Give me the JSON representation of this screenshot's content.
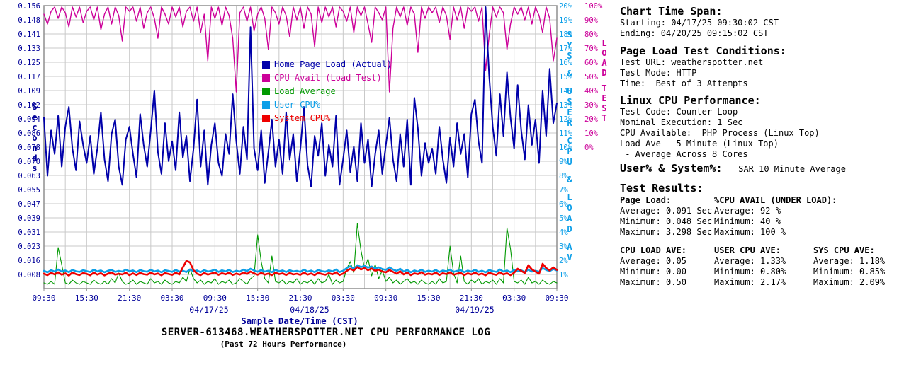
{
  "chart_data": {
    "type": "line",
    "title": "SERVER-613468.WEATHERSPOTTER.NET CPU PERFORMANCE LOG",
    "subtitle": "(Past 72 Hours Performance)",
    "xlabel": "Sample Date/Time (CST)",
    "x_tick_labels": [
      "09:30",
      "15:30",
      "21:30",
      "03:30",
      "09:30",
      "15:30",
      "21:30",
      "03:30",
      "09:30",
      "15:30",
      "21:30",
      "03:30",
      "09:30"
    ],
    "x_dates": [
      "04/17/25",
      "04/18/25",
      "04/19/25"
    ],
    "x_range_hours": [
      0,
      72
    ],
    "grid": true,
    "axes": {
      "left": {
        "title": "Seconds",
        "ticks": [
          "0.156",
          "0.148",
          "0.141",
          "0.133",
          "0.125",
          "0.117",
          "0.109",
          "0.102",
          "0.094",
          "0.086",
          "0.078",
          "0.070",
          "0.063",
          "0.055",
          "0.047",
          "0.039",
          "0.031",
          "0.023",
          "0.016",
          "0.008"
        ],
        "range": [
          0.156,
          0.0
        ]
      },
      "right_inner": {
        "title": "SYS & USER CPU & LOAD AV",
        "ticks": [
          "20%",
          "19%",
          "18%",
          "17%",
          "16%",
          "15%",
          "14%",
          "13%",
          "12%",
          "11%",
          "10%",
          "9%",
          "8%",
          "7%",
          "6%",
          "5%",
          "4%",
          "3%",
          "2%",
          "1%"
        ],
        "range": [
          20,
          0
        ]
      },
      "right_outer": {
        "title": "LOAD TEST",
        "ticks": [
          "100%",
          "90%",
          "80%",
          "70%",
          "60%",
          "50%",
          "40%",
          "30%",
          "20%",
          "10%",
          "0%"
        ],
        "range": [
          100,
          0
        ]
      }
    },
    "series": [
      {
        "name": "Home Page Load (Actual)",
        "color": "#0000AA",
        "axis": "seconds",
        "width": 2,
        "values": [
          0.095,
          0.063,
          0.088,
          0.075,
          0.096,
          0.068,
          0.09,
          0.101,
          0.078,
          0.066,
          0.093,
          0.08,
          0.07,
          0.085,
          0.064,
          0.078,
          0.098,
          0.072,
          0.06,
          0.086,
          0.094,
          0.068,
          0.058,
          0.083,
          0.09,
          0.075,
          0.062,
          0.097,
          0.08,
          0.068,
          0.088,
          0.11,
          0.076,
          0.064,
          0.092,
          0.071,
          0.082,
          0.066,
          0.098,
          0.073,
          0.085,
          0.06,
          0.078,
          0.105,
          0.068,
          0.088,
          0.058,
          0.08,
          0.092,
          0.07,
          0.063,
          0.086,
          0.075,
          0.108,
          0.082,
          0.064,
          0.09,
          0.072,
          0.145,
          0.078,
          0.066,
          0.088,
          0.059,
          0.076,
          0.094,
          0.068,
          0.083,
          0.064,
          0.098,
          0.072,
          0.086,
          0.06,
          0.078,
          0.101,
          0.069,
          0.057,
          0.085,
          0.074,
          0.092,
          0.063,
          0.08,
          0.068,
          0.096,
          0.058,
          0.072,
          0.088,
          0.065,
          0.079,
          0.06,
          0.092,
          0.07,
          0.083,
          0.057,
          0.075,
          0.088,
          0.064,
          0.08,
          0.095,
          0.072,
          0.06,
          0.086,
          0.068,
          0.094,
          0.058,
          0.106,
          0.089,
          0.063,
          0.081,
          0.07,
          0.078,
          0.064,
          0.09,
          0.072,
          0.059,
          0.084,
          0.068,
          0.092,
          0.075,
          0.086,
          0.062,
          0.097,
          0.105,
          0.082,
          0.07,
          0.156,
          0.118,
          0.09,
          0.074,
          0.108,
          0.085,
          0.12,
          0.095,
          0.078,
          0.113,
          0.088,
          0.072,
          0.102,
          0.08,
          0.094,
          0.07,
          0.11,
          0.085,
          0.122,
          0.092,
          0.103
        ]
      },
      {
        "name": "CPU Avail (Load Test)",
        "color": "#CC0099",
        "axis": "load",
        "width": 1.4,
        "values": [
          95,
          88,
          97,
          100,
          92,
          100,
          96,
          86,
          100,
          93,
          100,
          89,
          97,
          100,
          91,
          100,
          84,
          95,
          100,
          88,
          100,
          94,
          76,
          100,
          97,
          100,
          90,
          100,
          85,
          96,
          100,
          92,
          78,
          100,
          95,
          88,
          100,
          93,
          100,
          86,
          97,
          100,
          90,
          100,
          82,
          95,
          62,
          100,
          92,
          100,
          87,
          100,
          94,
          78,
          40,
          96,
          100,
          90,
          100,
          83,
          95,
          100,
          92,
          70,
          100,
          96,
          88,
          100,
          94,
          79,
          100,
          91,
          100,
          85,
          100,
          95,
          72,
          100,
          89,
          100,
          93,
          100,
          86,
          100,
          97,
          90,
          100,
          82,
          100,
          94,
          100,
          88,
          75,
          100,
          96,
          91,
          100,
          40,
          85,
          100,
          93,
          100,
          87,
          100,
          95,
          68,
          100,
          92,
          100,
          96,
          100,
          89,
          100,
          94,
          77,
          100,
          91,
          100,
          85,
          100,
          97,
          100,
          90,
          100,
          55,
          80,
          100,
          93,
          100,
          96,
          70,
          88,
          100,
          95,
          100,
          91,
          100,
          88,
          100,
          94,
          82,
          100,
          92,
          62,
          78
        ]
      },
      {
        "name": "Load Average",
        "color": "#009900",
        "axis": "pct",
        "width": 1.1,
        "values": [
          0.5,
          0.4,
          0.6,
          0.4,
          3.0,
          1.8,
          0.5,
          0.4,
          0.7,
          0.5,
          0.4,
          0.6,
          0.5,
          0.4,
          0.7,
          0.5,
          0.4,
          0.6,
          0.4,
          0.8,
          0.5,
          1.2,
          0.6,
          0.4,
          0.5,
          0.7,
          0.4,
          0.6,
          0.5,
          0.4,
          0.8,
          0.5,
          0.6,
          0.4,
          0.7,
          0.5,
          0.4,
          0.6,
          0.5,
          0.9,
          0.6,
          1.5,
          0.8,
          0.5,
          0.7,
          0.4,
          0.6,
          0.5,
          0.8,
          0.4,
          0.6,
          0.5,
          0.7,
          0.4,
          0.5,
          0.8,
          0.6,
          0.4,
          0.8,
          1.0,
          3.9,
          2.0,
          0.8,
          0.5,
          2.4,
          0.6,
          0.5,
          0.7,
          0.4,
          0.6,
          0.5,
          0.8,
          0.4,
          0.6,
          0.5,
          0.7,
          0.4,
          0.8,
          0.5,
          0.6,
          1.1,
          0.4,
          0.7,
          0.5,
          0.6,
          1.5,
          2.0,
          1.2,
          4.7,
          2.8,
          1.5,
          2.2,
          1.0,
          1.8,
          0.8,
          1.4,
          0.6,
          0.9,
          0.5,
          0.7,
          0.4,
          0.6,
          0.8,
          0.5,
          0.6,
          0.4,
          0.7,
          0.5,
          0.4,
          0.6,
          0.4,
          0.8,
          0.5,
          0.6,
          3.1,
          1.2,
          0.5,
          2.4,
          0.6,
          0.4,
          0.7,
          0.5,
          0.8,
          0.4,
          0.6,
          0.5,
          0.7,
          0.4,
          0.8,
          0.5,
          4.4,
          2.9,
          0.6,
          0.5,
          0.7,
          0.4,
          0.9,
          0.5,
          0.6,
          0.4,
          0.7,
          0.5,
          0.4,
          0.6,
          0.5
        ]
      },
      {
        "name": "User CPU%",
        "color": "#0D9FE8",
        "axis": "pct",
        "width": 2.6,
        "values": [
          1.35,
          1.25,
          1.4,
          1.3,
          1.45,
          1.3,
          1.38,
          1.26,
          1.42,
          1.32,
          1.28,
          1.4,
          1.33,
          1.27,
          1.44,
          1.31,
          1.38,
          1.25,
          1.36,
          1.42,
          1.28,
          1.35,
          1.3,
          1.44,
          1.32,
          1.38,
          1.26,
          1.41,
          1.33,
          1.29,
          1.43,
          1.31,
          1.37,
          1.25,
          1.4,
          1.34,
          1.28,
          1.42,
          1.3,
          1.36,
          1.27,
          1.45,
          1.32,
          1.38,
          1.26,
          1.41,
          1.3,
          1.35,
          1.44,
          1.28,
          1.39,
          1.31,
          1.42,
          1.27,
          1.36,
          1.3,
          1.44,
          1.33,
          1.5,
          1.38,
          1.29,
          1.41,
          1.3,
          1.36,
          1.26,
          1.43,
          1.32,
          1.38,
          1.27,
          1.4,
          1.31,
          1.35,
          1.28,
          1.44,
          1.3,
          1.37,
          1.26,
          1.42,
          1.33,
          1.29,
          1.39,
          1.31,
          1.45,
          1.27,
          1.36,
          1.55,
          1.68,
          1.5,
          1.75,
          1.62,
          1.7,
          1.58,
          1.66,
          1.52,
          1.6,
          1.48,
          1.42,
          1.6,
          1.45,
          1.35,
          1.5,
          1.3,
          1.42,
          1.25,
          1.38,
          1.3,
          1.44,
          1.28,
          1.36,
          1.3,
          1.42,
          1.27,
          1.38,
          1.31,
          1.44,
          1.28,
          1.35,
          1.4,
          1.26,
          1.37,
          1.3,
          1.43,
          1.29,
          1.36,
          1.25,
          1.41,
          1.33,
          1.28,
          1.45,
          1.3,
          1.38,
          1.26,
          1.42,
          1.31,
          1.39,
          1.27,
          1.44,
          1.3,
          1.36,
          1.28,
          1.55,
          1.42,
          1.33,
          1.48,
          1.38
        ]
      },
      {
        "name": "System CPU%",
        "color": "#EE0000",
        "axis": "pct",
        "width": 2.6,
        "values": [
          1.15,
          1.05,
          1.22,
          1.1,
          1.25,
          1.08,
          1.18,
          1.02,
          1.24,
          1.12,
          1.06,
          1.2,
          1.14,
          1.04,
          1.23,
          1.09,
          1.19,
          1.03,
          1.16,
          1.24,
          1.08,
          1.15,
          1.1,
          1.22,
          1.05,
          1.18,
          1.06,
          1.21,
          1.12,
          1.08,
          1.23,
          1.1,
          1.17,
          1.04,
          1.2,
          1.13,
          1.07,
          1.22,
          1.1,
          1.6,
          2.05,
          1.95,
          1.4,
          1.15,
          1.05,
          1.21,
          1.09,
          1.16,
          1.24,
          1.07,
          1.19,
          1.11,
          1.23,
          1.06,
          1.16,
          1.09,
          1.24,
          1.13,
          1.3,
          1.18,
          1.08,
          1.21,
          1.09,
          1.16,
          1.05,
          1.23,
          1.12,
          1.18,
          1.06,
          1.2,
          1.1,
          1.15,
          1.07,
          1.24,
          1.09,
          1.17,
          1.05,
          1.22,
          1.13,
          1.08,
          1.19,
          1.11,
          1.25,
          1.06,
          1.16,
          1.35,
          1.5,
          1.38,
          1.62,
          1.45,
          1.55,
          1.4,
          1.52,
          1.36,
          1.44,
          1.3,
          1.25,
          1.42,
          1.28,
          1.15,
          1.32,
          1.1,
          1.24,
          1.05,
          1.18,
          1.12,
          1.26,
          1.08,
          1.16,
          1.1,
          1.24,
          1.06,
          1.19,
          1.12,
          1.25,
          1.08,
          1.15,
          1.21,
          1.05,
          1.18,
          1.1,
          1.23,
          1.09,
          1.16,
          1.04,
          1.22,
          1.13,
          1.07,
          1.25,
          1.1,
          1.19,
          1.05,
          1.22,
          1.5,
          1.35,
          1.2,
          1.75,
          1.45,
          1.3,
          1.15,
          1.85,
          1.55,
          1.38,
          1.6,
          1.42
        ]
      }
    ],
    "colors": {
      "grid": "#C9C9C9",
      "border": "#8F8F8F",
      "tick_text": "#000099"
    }
  },
  "panel": {
    "time_span": {
      "title": "Chart Time Span:",
      "starting": "Starting: 04/17/25 09:30:02 CST",
      "ending": "Ending: 04/20/25 09:15:02 CST"
    },
    "conditions": {
      "title": "Page Load Test Conditions:",
      "line1": "Test URL: weatherspotter.net",
      "line2": "Test Mode: HTTP",
      "line3": "Time:  Best of 3 Attempts"
    },
    "cpu_perf": {
      "title": "Linux CPU Performance:",
      "line1": "Test Code: Counter Loop",
      "line2": "Nominal Execution: 1 Sec",
      "line3": "CPU Available:  PHP Process (Linux Top)",
      "line4": "Load Ave - 5 Minute (Linux Top)",
      "line5": " - Average Across 8 Cores"
    },
    "user_system": {
      "title": "User% & System%:",
      "suffix": " SAR 10 Minute Average"
    },
    "results": {
      "title": "Test Results:",
      "page_load": {
        "title": "Page Load:",
        "rows": [
          "Average: 0.091 Sec",
          "Minimum: 0.048 Sec",
          "Maximum: 3.298 Sec"
        ]
      },
      "cpu_avail": {
        "title": "%CPU AVAIL (UNDER LOAD):",
        "rows": [
          "Average: 92 %",
          "Minimum: 40 %",
          "Maximum: 100 %"
        ]
      },
      "load_ave": {
        "title": "CPU LOAD AVE:",
        "rows": [
          "Average: 0.05",
          "Minimum: 0.00",
          "Maximum: 0.50"
        ]
      },
      "user_ave": {
        "title": "USER CPU AVE:",
        "rows": [
          "Average: 1.33%",
          "Minimum: 0.80%",
          "Maximum: 2.17%"
        ]
      },
      "sys_ave": {
        "title": "SYS CPU AVE:",
        "rows": [
          "Average: 1.18%",
          "Minimum: 0.85%",
          "Maximum: 2.09%"
        ]
      }
    }
  }
}
